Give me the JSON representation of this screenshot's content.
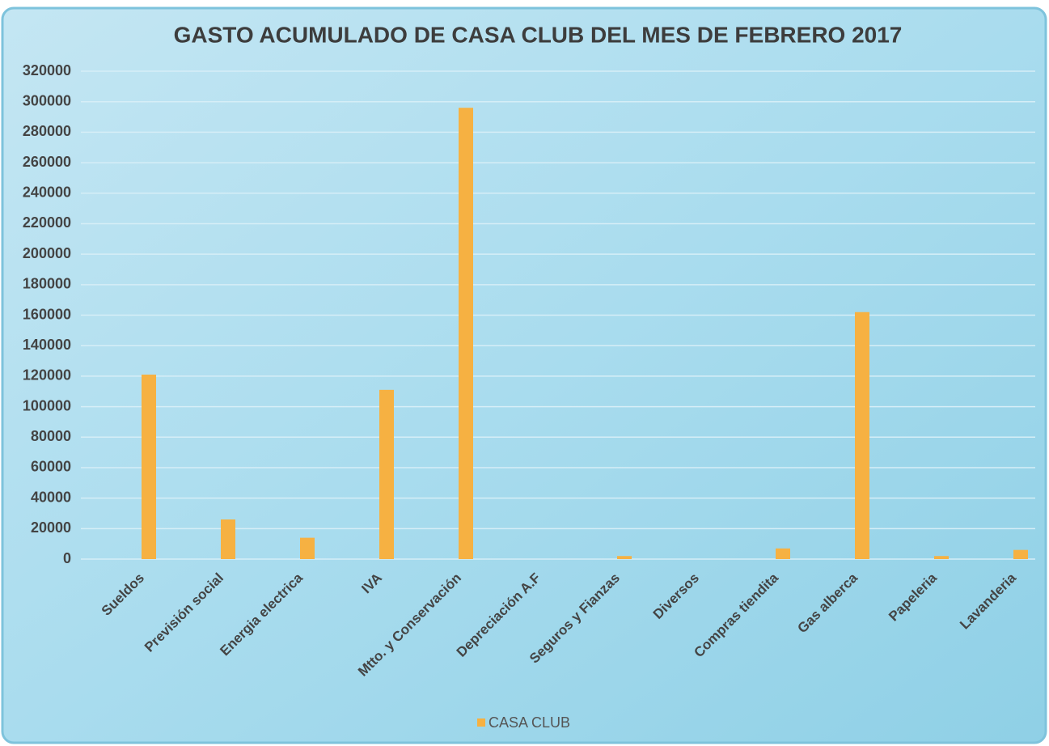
{
  "chart_data": {
    "type": "bar",
    "title": "GASTO ACUMULADO DE CASA CLUB DEL MES DE FEBRERO 2017",
    "categories": [
      "Sueldos",
      "Previsión social",
      "Energia electrica",
      "IVA",
      "Mtto. y Conservación",
      "Depreciación A.F",
      "Seguros y Fianzas",
      "Diversos",
      "Compras tiendita",
      "Gas alberca",
      "Papeleria",
      "Lavanderia"
    ],
    "series": [
      {
        "name": "CASA CLUB",
        "color": "#f6b142",
        "values": [
          121000,
          26000,
          14000,
          111000,
          296000,
          0,
          2000,
          0,
          7000,
          162000,
          2000,
          6000
        ]
      }
    ],
    "ylim": [
      0,
      320000
    ],
    "yticks": [
      0,
      20000,
      40000,
      60000,
      80000,
      100000,
      120000,
      140000,
      160000,
      180000,
      200000,
      220000,
      240000,
      260000,
      280000,
      300000,
      320000
    ],
    "grid": true,
    "legend": "bottom"
  }
}
